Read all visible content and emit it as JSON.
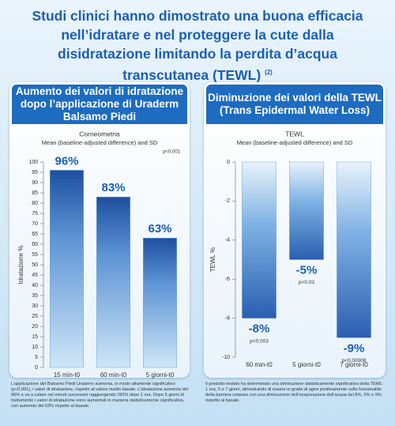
{
  "title": "Studi clinici hanno dimostrato una buona efficacia nell’idratare e nel proteggere la cute dalla disidratazione limitando la perdita d’acqua transcutanea (TEWL)",
  "title_note": "(2)",
  "chart_data": [
    {
      "type": "bar",
      "title": "Aumento dei valori di idratazione dopo l’applicazione di Uraderm Balsamo Piedi",
      "subtitle": "Corneometria",
      "subtitle2": "Mean (baseline-adjusted difference) and SD",
      "annotation": "p<0,001",
      "y_label": "Idratazione %",
      "categories": [
        "15 min-t0",
        "60 min-t0",
        "5 giorni-t0"
      ],
      "values": [
        96,
        83,
        63
      ],
      "value_labels": [
        "96%",
        "83%",
        "63%"
      ],
      "color": "#6fa8dc",
      "ylim": [
        0,
        100
      ],
      "yticks": [
        0,
        5,
        10,
        15,
        20,
        25,
        30,
        35,
        40,
        45,
        50,
        55,
        60,
        65,
        70,
        75,
        80,
        85,
        90,
        95,
        100
      ]
    },
    {
      "type": "bar",
      "title": "Diminuzione dei valori della TEWL (Trans Epidermal Water Loss)",
      "subtitle": "TEWL",
      "subtitle2": "Mean (baseline-adjusted difference) and SD",
      "y_label": "TEWL %",
      "categories": [
        "60 min-t0",
        "5 giorni-t0",
        "7 giorni-t0"
      ],
      "values": [
        -8,
        -5,
        -9
      ],
      "value_labels": [
        "-8%",
        "-5%",
        "-9%"
      ],
      "p_values": [
        "p<0,003",
        "p<0,03",
        "p<0,00008"
      ],
      "color": "#6fa8dc",
      "ylim": [
        -10,
        0
      ],
      "yticks": [
        0,
        -2,
        -4,
        -6,
        -8,
        -10
      ]
    }
  ],
  "notes": [
    "L’applicazione del Balsamo Piedi Uraderm aumenta, in modo altamente significativo (p<0,001), i valori di idratazione, rispetto al valore medio basale. L’idratazione aumenta del 96% e va a calare nei minuti successivi raggiungendo l’83% dopo 1 ora. Dopo 5 giorni di trattamento i valori di idratazione sono aumentati in maniera statisticamente significativa, con aumento del 63% rispetto al basale.",
    "Il prodotto testato ha determinato una diminuzione statisticamente significativa della TEWL: 1 ora, 5 e 7 giorni, dimostrando di essere in grado di agire positivamente sulla funzionalità della barriera cutanea con una diminuzione dell’evaporazione dell’acqua del 8%, 5% e 9% rispetto al basale."
  ]
}
